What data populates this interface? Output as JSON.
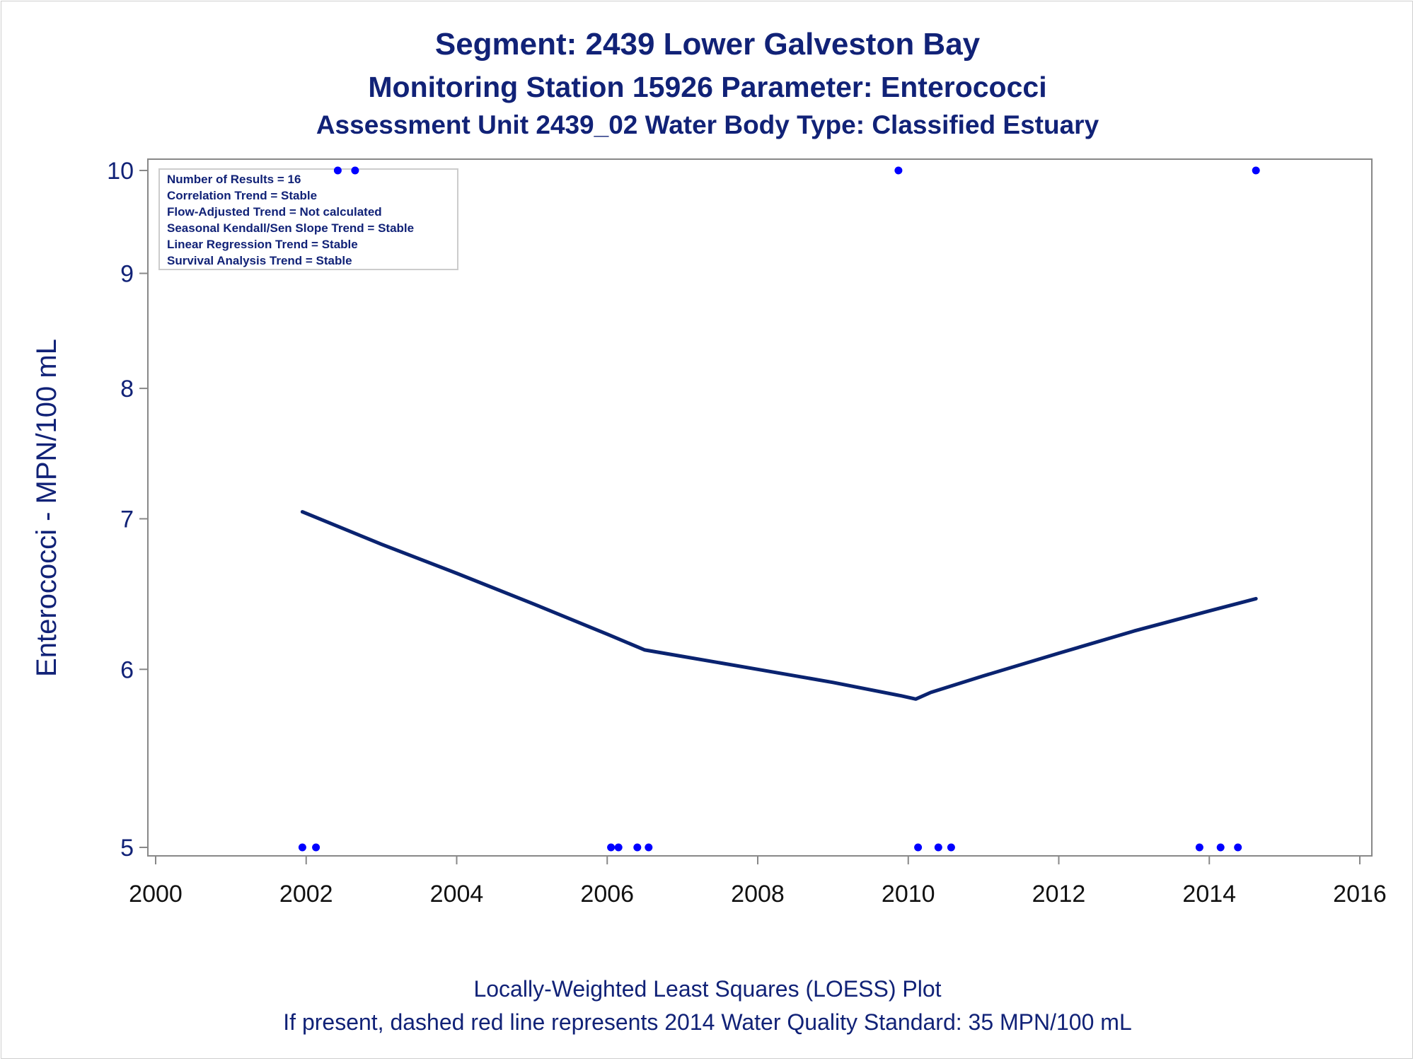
{
  "titles": {
    "line1": "Segment: 2439  Lower Galveston Bay",
    "line2": "Monitoring Station 15926 Parameter: Enterococci",
    "line3": "Assessment Unit 2439_02   Water Body Type: Classified Estuary"
  },
  "footnotes": {
    "line1": "Locally-Weighted Least Squares (LOESS) Plot",
    "line2": "If present, dashed red line represents 2014 Water Quality Standard: 35 MPN/100 mL"
  },
  "stats_box": [
    "Number of Results = 16",
    "Correlation Trend = Stable",
    "Flow-Adjusted Trend = Not calculated",
    "Seasonal Kendall/Sen Slope Trend = Stable",
    "Linear Regression Trend = Stable",
    "Survival Analysis Trend = Stable"
  ],
  "colors": {
    "text": "#112277",
    "loess_line": "#0a2370",
    "points": "#0000ff",
    "axis": "#888888"
  },
  "chart_data": {
    "type": "scatter",
    "xlabel": "",
    "ylabel": "Enterococci - MPN/100 mL",
    "x_axis": {
      "min": 2000,
      "max": 2016,
      "ticks": [
        2000,
        2002,
        2004,
        2006,
        2008,
        2010,
        2012,
        2014,
        2016
      ]
    },
    "y_axis": {
      "scale": "log",
      "min": 4.95,
      "max": 10.0,
      "ticks": [
        5,
        6,
        7,
        8,
        9,
        10
      ]
    },
    "grid": false,
    "legend": "stats box top-left",
    "series": [
      {
        "type": "scatter",
        "points": [
          {
            "x": 2001.95,
            "y": 5
          },
          {
            "x": 2002.13,
            "y": 5
          },
          {
            "x": 2002.42,
            "y": 10
          },
          {
            "x": 2002.65,
            "y": 10
          },
          {
            "x": 2006.05,
            "y": 5
          },
          {
            "x": 2006.15,
            "y": 5
          },
          {
            "x": 2006.4,
            "y": 5
          },
          {
            "x": 2006.55,
            "y": 5
          },
          {
            "x": 2009.87,
            "y": 10
          },
          {
            "x": 2010.13,
            "y": 5
          },
          {
            "x": 2010.4,
            "y": 5
          },
          {
            "x": 2010.57,
            "y": 5
          },
          {
            "x": 2013.87,
            "y": 5
          },
          {
            "x": 2014.15,
            "y": 5
          },
          {
            "x": 2014.38,
            "y": 5
          },
          {
            "x": 2014.62,
            "y": 10
          }
        ]
      },
      {
        "type": "line",
        "points": [
          {
            "x": 2001.95,
            "y": 7.05
          },
          {
            "x": 2003.0,
            "y": 6.82
          },
          {
            "x": 2004.0,
            "y": 6.62
          },
          {
            "x": 2005.0,
            "y": 6.42
          },
          {
            "x": 2006.0,
            "y": 6.22
          },
          {
            "x": 2006.5,
            "y": 6.12
          },
          {
            "x": 2007.0,
            "y": 6.08
          },
          {
            "x": 2008.0,
            "y": 6.0
          },
          {
            "x": 2009.0,
            "y": 5.92
          },
          {
            "x": 2009.9,
            "y": 5.84
          },
          {
            "x": 2010.1,
            "y": 5.82
          },
          {
            "x": 2010.3,
            "y": 5.86
          },
          {
            "x": 2011.0,
            "y": 5.96
          },
          {
            "x": 2012.0,
            "y": 6.1
          },
          {
            "x": 2013.0,
            "y": 6.24
          },
          {
            "x": 2014.0,
            "y": 6.37
          },
          {
            "x": 2014.62,
            "y": 6.45
          }
        ]
      }
    ]
  }
}
